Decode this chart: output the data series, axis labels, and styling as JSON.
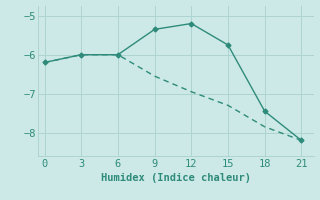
{
  "line1_x": [
    0,
    3,
    6,
    9,
    12,
    15,
    18,
    21
  ],
  "line1_y": [
    -6.2,
    -6.0,
    -6.0,
    -5.35,
    -5.2,
    -5.75,
    -7.45,
    -8.2
  ],
  "line2_x": [
    0,
    3,
    6,
    9,
    12,
    15,
    18,
    21
  ],
  "line2_y": [
    -6.2,
    -6.0,
    -6.0,
    -6.55,
    -6.95,
    -7.3,
    -7.85,
    -8.2
  ],
  "line_color": "#2e8b7a",
  "bg_color": "#cce9e7",
  "grid_color": "#aed4d2",
  "xlabel": "Humidex (Indice chaleur)",
  "xlim": [
    -0.5,
    22
  ],
  "ylim": [
    -8.6,
    -4.75
  ],
  "xticks": [
    0,
    3,
    6,
    9,
    12,
    15,
    18,
    21
  ],
  "yticks": [
    -8,
    -7,
    -6,
    -5
  ],
  "xlabel_fontsize": 7.5,
  "tick_fontsize": 7.5
}
